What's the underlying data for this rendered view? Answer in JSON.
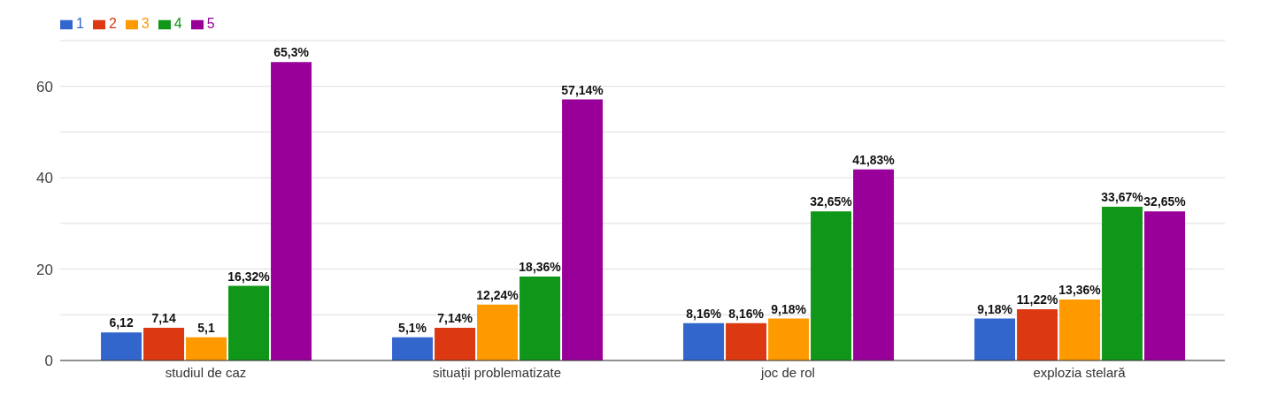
{
  "chart_data": {
    "type": "bar",
    "categories": [
      "studiul de caz",
      "situații problematizate",
      "joc de rol",
      "explozia stelară"
    ],
    "series": [
      {
        "name": "1",
        "color": "#3366cc",
        "values": [
          6.12,
          5.1,
          8.16,
          9.18
        ],
        "value_labels": [
          "6,12",
          "5,1%",
          "8,16%",
          "9,18%"
        ]
      },
      {
        "name": "2",
        "color": "#dc3912",
        "values": [
          7.14,
          7.14,
          8.16,
          11.22
        ],
        "value_labels": [
          "7,14",
          "7,14%",
          "8,16%",
          "11,22%"
        ]
      },
      {
        "name": "3",
        "color": "#ff9900",
        "values": [
          5.1,
          12.24,
          9.18,
          13.36
        ],
        "value_labels": [
          "5,1",
          "12,24%",
          "9,18%",
          "13,36%"
        ]
      },
      {
        "name": "4",
        "color": "#109618",
        "values": [
          16.32,
          18.36,
          32.65,
          33.67
        ],
        "value_labels": [
          "16,32%",
          "18,36%",
          "32,65%",
          "33,67%"
        ]
      },
      {
        "name": "5",
        "color": "#990099",
        "values": [
          65.3,
          57.14,
          41.83,
          32.65
        ],
        "value_labels": [
          "65,3%",
          "57,14%",
          "41,83%",
          "32,65%"
        ]
      }
    ],
    "ylim": [
      0,
      70
    ],
    "yticks": [
      0,
      {
        "value": 10,
        "label": null
      },
      20,
      {
        "value": 30,
        "label": null
      },
      40,
      {
        "value": 50,
        "label": null
      },
      60,
      {
        "value": 70,
        "label": null
      }
    ],
    "grid": "y",
    "legend": "top left"
  }
}
